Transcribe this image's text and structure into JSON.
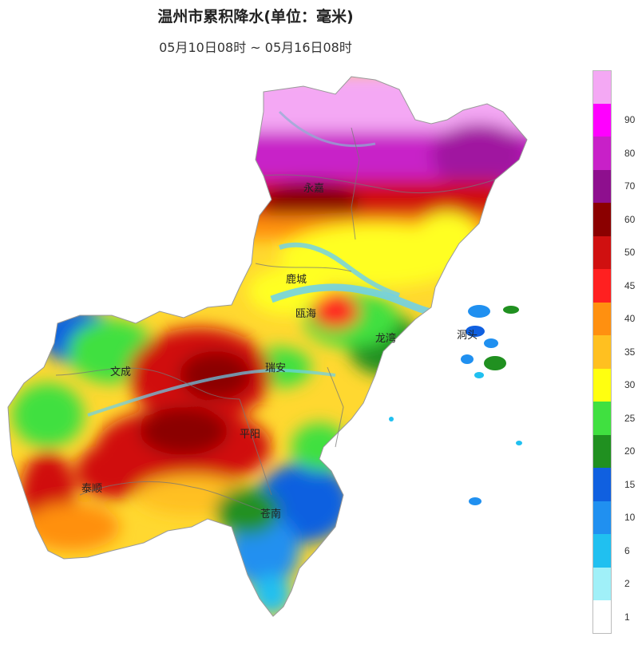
{
  "header": {
    "title": "温州市累积降水(单位：毫米)",
    "subtitle": "05月10日08时 ~ 05月16日08时"
  },
  "legend": {
    "items": [
      {
        "label": "",
        "color": "#f4a8f4"
      },
      {
        "label": "90",
        "color": "#ff00ff"
      },
      {
        "label": "80",
        "color": "#c820c8"
      },
      {
        "label": "70",
        "color": "#8e0f8e"
      },
      {
        "label": "60",
        "color": "#8b0000"
      },
      {
        "label": "50",
        "color": "#d01010"
      },
      {
        "label": "45",
        "color": "#ff2020"
      },
      {
        "label": "40",
        "color": "#ff9010"
      },
      {
        "label": "35",
        "color": "#ffc020"
      },
      {
        "label": "30",
        "color": "#ffff10"
      },
      {
        "label": "25",
        "color": "#40e040"
      },
      {
        "label": "20",
        "color": "#209020"
      },
      {
        "label": "15",
        "color": "#1060e0"
      },
      {
        "label": "10",
        "color": "#2090f0"
      },
      {
        "label": "6",
        "color": "#20c0f0"
      },
      {
        "label": "2",
        "color": "#a0f0f8"
      },
      {
        "label": "1",
        "color": "#ffffff"
      }
    ]
  },
  "map": {
    "place_labels": {
      "yongjia": "永嘉",
      "lucheng": "鹿城",
      "ouhai": "瓯海",
      "longwan": "龙湾",
      "dongtou": "洞头",
      "wencheng": "文成",
      "ruian": "瑞安",
      "pingyang": "平阳",
      "taishun": "泰顺",
      "cangnan": "苍南"
    }
  }
}
